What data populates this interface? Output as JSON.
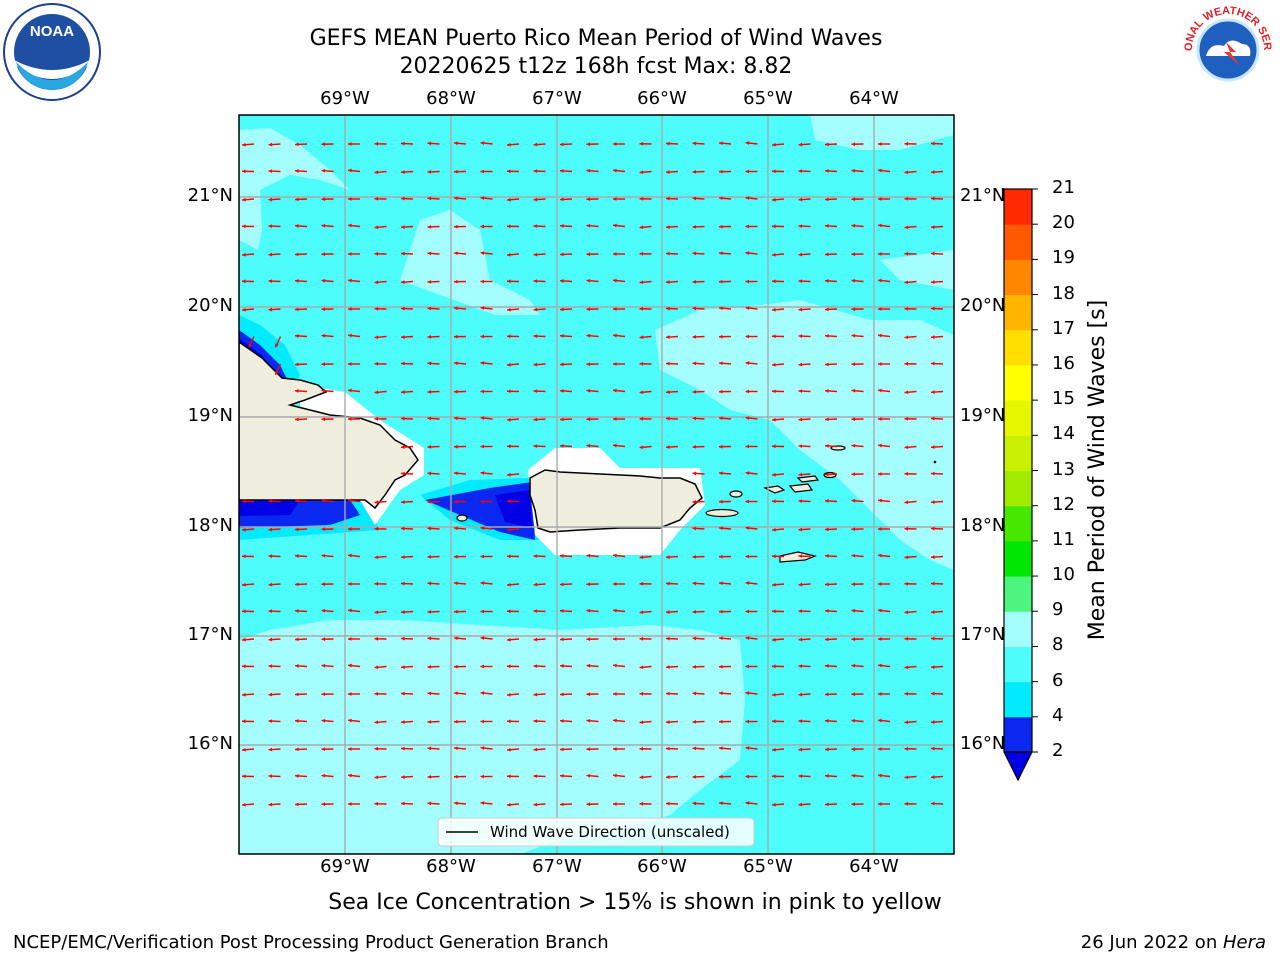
{
  "title_line1": "GEFS MEAN Puerto Rico Mean Period of Wind Waves",
  "title_line2": "20220625 t12z 168h fcst   Max: 8.82",
  "logos": {
    "left": "NOAA",
    "right": "NATIONAL WEATHER SERVICE"
  },
  "map": {
    "lon_ticks": [
      "69°W",
      "68°W",
      "67°W",
      "66°W",
      "65°W",
      "64°W"
    ],
    "lat_ticks": [
      "21°N",
      "20°N",
      "19°N",
      "18°N",
      "17°N",
      "16°N"
    ],
    "legend_label": "Wind Wave Direction (unscaled)",
    "arrow_color": "#ff0000",
    "land_color": "#efedde"
  },
  "colorbar": {
    "label": "Mean Period of Wind Waves [s]",
    "ticks": [
      "2",
      "4",
      "6",
      "8",
      "9",
      "10",
      "11",
      "12",
      "13",
      "14",
      "15",
      "16",
      "17",
      "18",
      "19",
      "20",
      "21"
    ],
    "colors": [
      "#0a28f0",
      "#00ebff",
      "#4cfdfc",
      "#a5fefe",
      "#4cf57c",
      "#00e800",
      "#47e800",
      "#a0eb00",
      "#c8f000",
      "#e6f500",
      "#ffff00",
      "#ffde00",
      "#ffb400",
      "#ff8700",
      "#ff5a00",
      "#ff2a00",
      "#ff0000"
    ],
    "extend_min_color": "#0000e6"
  },
  "subtitle": "Sea Ice Concentration > 15% is shown in pink to yellow",
  "footer_left": "NCEP/EMC/Verification Post Processing Product Generation Branch",
  "footer_right_prefix": "26 Jun 2022 on ",
  "footer_right_host": "Hera"
}
